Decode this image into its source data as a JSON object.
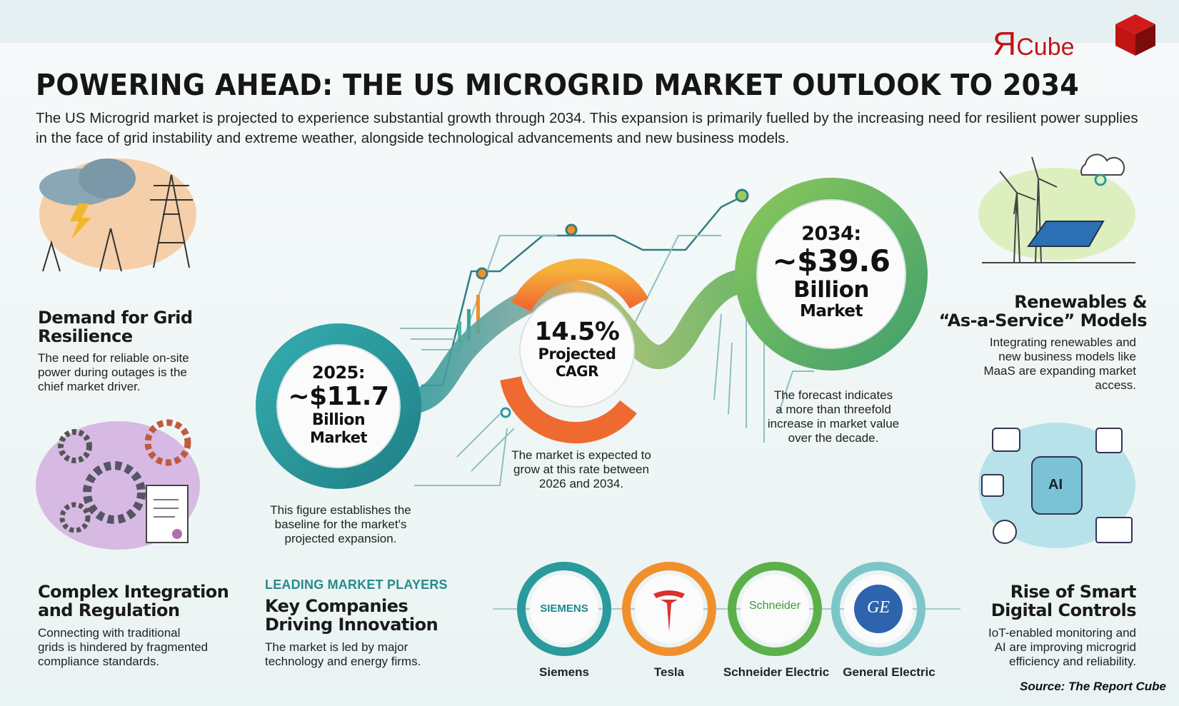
{
  "logo": {
    "text": "ЯCube",
    "mark": "Я",
    "word": "Cube",
    "color": "#c0161b"
  },
  "title": "POWERING AHEAD: THE US MICROGRID MARKET OUTLOOK TO 2034",
  "subtitle": "The US Microgrid market is projected to experience substantial growth through 2034. This expansion is primarily fuelled by the increasing need for resilient power supplies in the face of grid instability and extreme weather, alongside technological advancements and new business models.",
  "drivers": {
    "grid_resilience": {
      "heading": "Demand for Grid\nResilience",
      "body": "The need for reliable on-site\npower during outages is the\nchief market driver.",
      "icon": "storm-power-tower-icon"
    },
    "integration": {
      "heading": "Complex Integration\nand Regulation",
      "body": "Connecting with traditional\ngrids is hindered by fragmented\ncompliance standards.",
      "icon": "gears-document-icon"
    },
    "renewables": {
      "heading": "Renewables &\n“As-a-Service” Models",
      "body": "Integrating renewables and\nnew business models like\nMaaS are expanding market\naccess.",
      "icon": "wind-solar-cloud-icon"
    },
    "smart_controls": {
      "heading": "Rise of Smart\nDigital Controls",
      "body": "IoT-enabled monitoring and\nAI are improving microgrid\nefficiency and reliability.",
      "icon": "ai-brain-icon",
      "ai_label": "AI"
    }
  },
  "metrics": {
    "y2025": {
      "year": "2025:",
      "value": "~$11.7",
      "unit": "Billion",
      "label": "Market",
      "caption": "This figure establishes the\nbaseline for the market's\nprojected expansion.",
      "color": "#2a9a9c"
    },
    "cagr": {
      "value": "14.5%",
      "line1": "Projected",
      "line2": "CAGR",
      "caption": "The market is expected to\ngrow at this rate between\n2026 and 2034.",
      "color": "#f0902c"
    },
    "y2034": {
      "year": "2034:",
      "value": "~$39.6",
      "unit": "Billion",
      "label": "Market",
      "caption": "The forecast indicates\na more than threefold\nincrease in market value\nover the decade.",
      "color": "#6cb84c"
    }
  },
  "players": {
    "kicker": "LEADING MARKET PLAYERS",
    "heading": "Key Companies\nDriving Innovation",
    "body": "The market is led by major\ntechnology and energy firms.",
    "companies": [
      {
        "name": "Siemens",
        "logo_text": "SIEMENS",
        "color": "#2a9a9c"
      },
      {
        "name": "Tesla",
        "logo_text": "T",
        "color": "#f0902c"
      },
      {
        "name": "Schneider Electric",
        "logo_text": "Schneider",
        "color": "#5bb04a"
      },
      {
        "name": "General Electric",
        "logo_text": "GE",
        "color": "#7cc6c8"
      }
    ]
  },
  "source": "Source: The Report Cube"
}
